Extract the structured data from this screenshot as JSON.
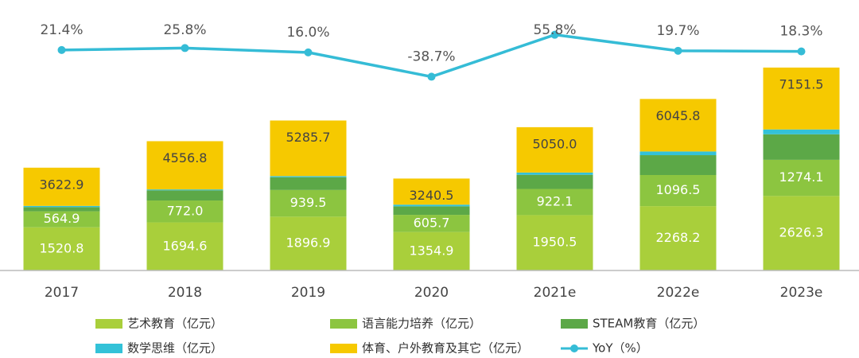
{
  "chart_data": {
    "type": "bar",
    "stacked": true,
    "categories": [
      "2017",
      "2018",
      "2019",
      "2020",
      "2021e",
      "2022e",
      "2023e"
    ],
    "ylim": [
      0,
      9000
    ],
    "y2lim": [
      -475,
      100
    ],
    "series": [
      {
        "name": "艺术教育（亿元）",
        "color": "#a9cf3b",
        "values": [
          1520.8,
          1694.6,
          1896.9,
          1354.9,
          1950.5,
          2268.2,
          2626.3
        ],
        "value_labels": [
          "1520.8",
          "1694.6",
          "1896.9",
          "1354.9",
          "1950.5",
          "2268.2",
          "2626.3"
        ]
      },
      {
        "name": "语言能力培养（亿元）",
        "color": "#8cc540",
        "values": [
          564.9,
          772.0,
          939.5,
          605.7,
          922.1,
          1096.5,
          1274.1
        ],
        "value_labels": [
          "564.9",
          "772.0",
          "939.5",
          "605.7",
          "922.1",
          "1096.5",
          "1274.1"
        ]
      },
      {
        "name": "STEAM教育（亿元）",
        "color": "#5ca847",
        "values": [
          150,
          360,
          450,
          300,
          500,
          700,
          900
        ]
      },
      {
        "name": "数学思维（亿元）",
        "color": "#33c2d8",
        "values": [
          40,
          30,
          40,
          60,
          80,
          130,
          170
        ]
      },
      {
        "name": "体育、户外教育及其它（亿元）",
        "color": "#f6c900",
        "values": [
          1347.2,
          1700.2,
          1959.3,
          919.9,
          1597.4,
          1851.1,
          2181.1
        ]
      },
      {
        "name": "YoY（%）",
        "type": "line",
        "axis": "y2",
        "color": "#35bcd6",
        "values": [
          21.4,
          25.8,
          16.0,
          -38.7,
          55.8,
          19.7,
          18.3
        ],
        "value_labels": [
          "21.4%",
          "25.8%",
          "16.0%",
          "-38.7%",
          "55.8%",
          "19.7%",
          "18.3%"
        ]
      }
    ],
    "totals": {
      "values": [
        3622.9,
        4556.8,
        5285.7,
        3240.5,
        5050.0,
        6045.8,
        7151.5
      ],
      "value_labels": [
        "3622.9",
        "4556.8",
        "5285.7",
        "3240.5",
        "5050.0",
        "6045.8",
        "7151.5"
      ]
    }
  }
}
